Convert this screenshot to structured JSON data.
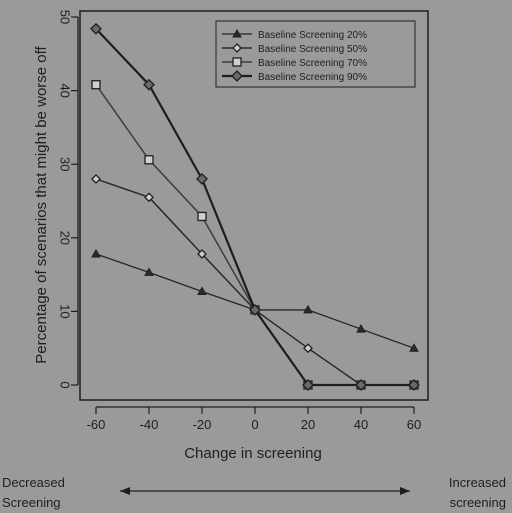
{
  "chart_data": {
    "type": "line",
    "title": "",
    "xlabel": "Change in screening",
    "ylabel": "Percentage of scenarios that might be worse off",
    "x": [
      -60,
      -40,
      -20,
      0,
      20,
      40,
      60
    ],
    "xticks": [
      "-60",
      "-40",
      "-20",
      "0",
      "20",
      "40",
      "60"
    ],
    "yticks": [
      "0",
      "10",
      "20",
      "30",
      "40",
      "50"
    ],
    "xlim": [
      -60,
      60
    ],
    "ylim": [
      0,
      50
    ],
    "grid": false,
    "legend_position": "top-right",
    "series": [
      {
        "name": "Baseline Screening 20%",
        "marker": "triangle",
        "values": [
          17.8,
          15.3,
          12.7,
          10.2,
          10.2,
          7.6,
          5.0
        ]
      },
      {
        "name": "Baseline Screening 50%",
        "marker": "diamond",
        "values": [
          28.0,
          25.5,
          17.8,
          10.2,
          5.0,
          0.0,
          0.0
        ]
      },
      {
        "name": "Baseline Screening 70%",
        "marker": "square",
        "values": [
          40.8,
          30.6,
          22.9,
          10.2,
          0.0,
          0.0,
          0.0
        ]
      },
      {
        "name": "Baseline Screening 90%",
        "marker": "diamond-dark",
        "values": [
          48.4,
          40.8,
          28.0,
          10.2,
          0.0,
          0.0,
          0.0
        ]
      }
    ]
  },
  "annotations": {
    "left_label": "Decreased\nScreening",
    "right_label": "Increased\nscreening"
  }
}
